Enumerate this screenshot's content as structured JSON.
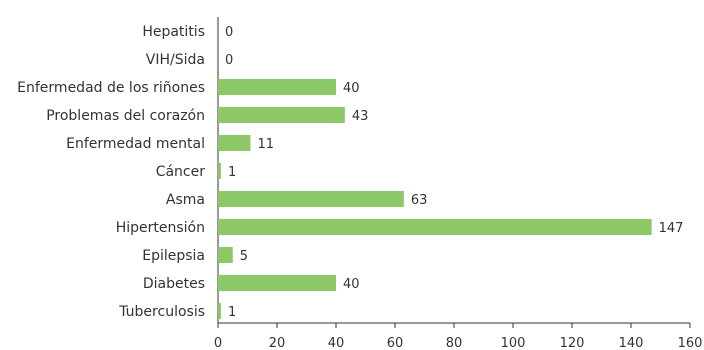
{
  "chart_data": {
    "type": "bar",
    "orientation": "horizontal",
    "categories": [
      "Hepatitis",
      "VIH/Sida",
      "Enfermedad de los riñones",
      "Problemas del corazón",
      "Enfermedad mental",
      "Cáncer",
      "Asma",
      "Hipertensión",
      "Epilepsia",
      "Diabetes",
      "Tuberculosis"
    ],
    "values": [
      0,
      0,
      40,
      43,
      11,
      1,
      63,
      147,
      5,
      40,
      1
    ],
    "data_labels": [
      "0",
      "0",
      "40",
      "43",
      "11",
      "1",
      "63",
      "147",
      "5",
      "40",
      "1"
    ],
    "xlim": [
      0,
      160
    ],
    "x_ticks": [
      0,
      20,
      40,
      60,
      80,
      100,
      120,
      140,
      160
    ],
    "title": "",
    "xlabel": "",
    "ylabel": "",
    "grid": false,
    "legend": "none",
    "bar_color": "#8cc966"
  }
}
